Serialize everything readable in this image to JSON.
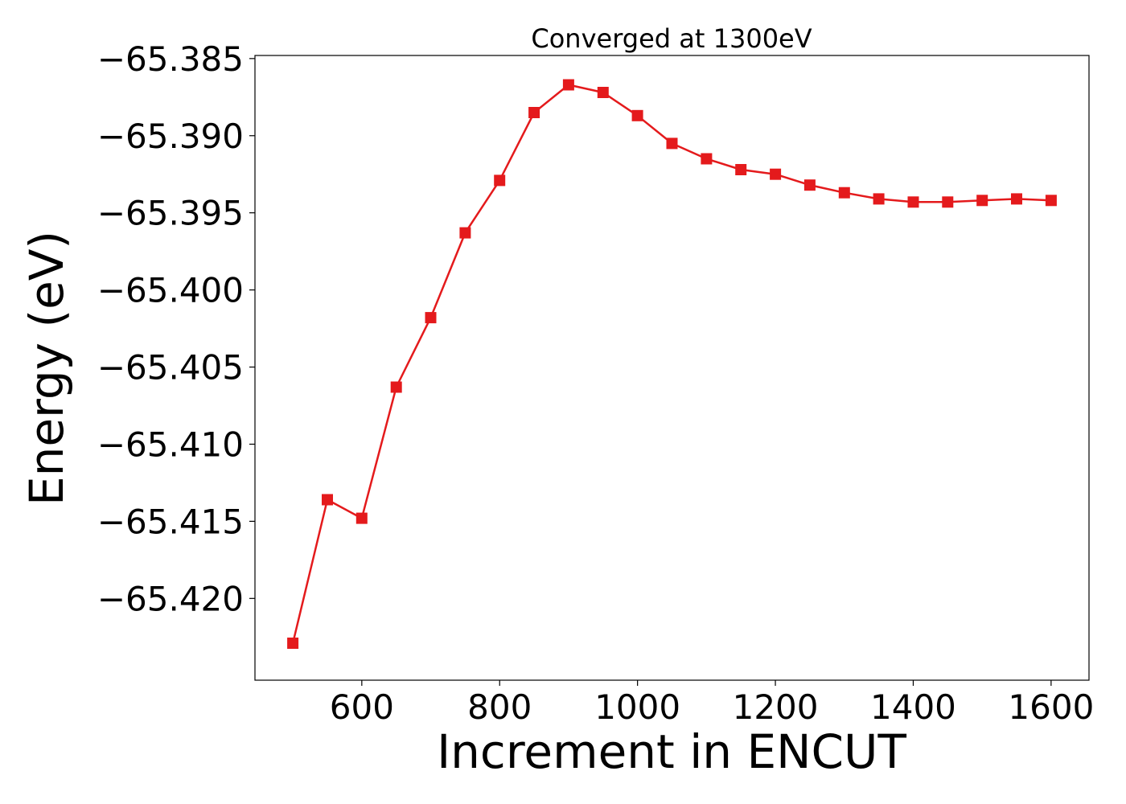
{
  "chart_data": {
    "type": "line",
    "title": "Converged at 1300eV",
    "xlabel": "Increment in ENCUT",
    "ylabel": "Energy (eV)",
    "xlim": [
      445,
      1655
    ],
    "ylim": [
      -65.4253,
      -65.3848
    ],
    "xticks": [
      600,
      800,
      1000,
      1200,
      1400,
      1600
    ],
    "xtick_labels": [
      "600",
      "800",
      "1000",
      "1200",
      "1400",
      "1600"
    ],
    "yticks": [
      -65.385,
      -65.39,
      -65.395,
      -65.4,
      -65.405,
      -65.41,
      -65.415,
      -65.42
    ],
    "ytick_labels": [
      "−65.385",
      "−65.390",
      "−65.395",
      "−65.400",
      "−65.405",
      "−65.410",
      "−65.415",
      "−65.420"
    ],
    "grid": false,
    "series": [
      {
        "color": "#e41a1c",
        "marker": "square",
        "x": [
          500,
          550,
          600,
          650,
          700,
          750,
          800,
          850,
          900,
          950,
          1000,
          1050,
          1100,
          1150,
          1200,
          1250,
          1300,
          1350,
          1400,
          1450,
          1500,
          1550,
          1600
        ],
        "y": [
          -65.4229,
          -65.4136,
          -65.4148,
          -65.4063,
          -65.4018,
          -65.3963,
          -65.3929,
          -65.3885,
          -65.3867,
          -65.3872,
          -65.3887,
          -65.3905,
          -65.3915,
          -65.3922,
          -65.3925,
          -65.3932,
          -65.3937,
          -65.3941,
          -65.3943,
          -65.3943,
          -65.3942,
          -65.3941,
          -65.3942
        ]
      }
    ]
  }
}
